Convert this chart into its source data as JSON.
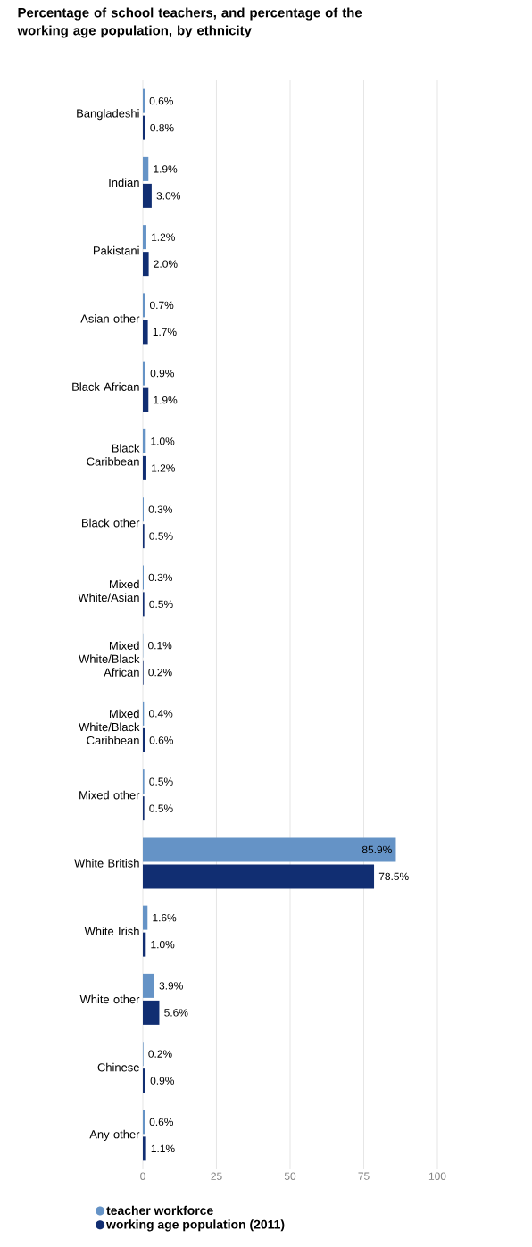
{
  "chart_data": {
    "type": "bar",
    "orientation": "horizontal",
    "title": "Percentage of school teachers, and percentage of the working age population, by ethnicity",
    "categories": [
      "Bangladeshi",
      "Indian",
      "Pakistani",
      "Asian other",
      "Black African",
      "Black Caribbean",
      "Black other",
      "Mixed White/Asian",
      "Mixed White/Black African",
      "Mixed White/Black Caribbean",
      "Mixed other",
      "White British",
      "White Irish",
      "White other",
      "Chinese",
      "Any other"
    ],
    "series": [
      {
        "name": "teacher workforce",
        "color": "#6593c6",
        "values": [
          0.6,
          1.9,
          1.2,
          0.7,
          0.9,
          1.0,
          0.3,
          0.3,
          0.1,
          0.4,
          0.5,
          85.9,
          1.6,
          3.9,
          0.2,
          0.6
        ],
        "value_labels": [
          "0.6%",
          "1.9%",
          "1.2%",
          "0.7%",
          "0.9%",
          "1.0%",
          "0.3%",
          "0.3%",
          "0.1%",
          "0.4%",
          "0.5%",
          "85.9%",
          "1.6%",
          "3.9%",
          "0.2%",
          "0.6%"
        ]
      },
      {
        "name": "working age population (2011)",
        "color": "#112e72",
        "values": [
          0.8,
          3.0,
          2.0,
          1.7,
          1.9,
          1.2,
          0.5,
          0.5,
          0.2,
          0.6,
          0.5,
          78.5,
          1.0,
          5.6,
          0.9,
          1.1
        ],
        "value_labels": [
          "0.8%",
          "3.0%",
          "2.0%",
          "1.7%",
          "1.9%",
          "1.2%",
          "0.5%",
          "0.5%",
          "0.2%",
          "0.6%",
          "0.5%",
          "78.5%",
          "1.0%",
          "5.6%",
          "0.9%",
          "1.1%"
        ]
      }
    ],
    "xlim": [
      0,
      100
    ],
    "xticks": [
      0,
      25,
      50,
      75,
      100
    ],
    "grid": "x",
    "legend": "bottom"
  }
}
